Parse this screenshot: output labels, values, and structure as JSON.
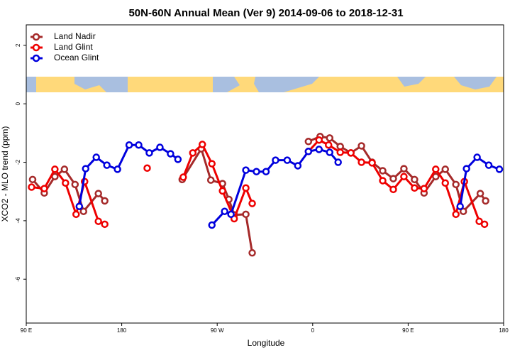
{
  "chart_data": {
    "type": "line",
    "title": "50N-60N Annual Mean (Ver 9)   2014-09-06 to 2018-12-31",
    "xlabel": "Longitude",
    "ylabel": "XCO2 - MLO trend (ppm)",
    "xlim": [
      90,
      540
    ],
    "xticks": [
      {
        "value": 90,
        "label": "90 E"
      },
      180,
      {
        "value": 270,
        "label": "90 W"
      },
      {
        "value": 360,
        "label": "0"
      },
      {
        "value": 450,
        "label": "90 E"
      },
      {
        "value": 540,
        "label": "180"
      }
    ],
    "ylim": [
      -7.5,
      2.7
    ],
    "yticks": [
      -6,
      -4,
      -2,
      0,
      2
    ],
    "legend": "top-left",
    "series": [
      {
        "name": "Land Nadir",
        "color": "#a52a2a",
        "x": [
          96,
          107,
          117,
          126,
          136,
          144,
          158,
          164,
          null,
          237,
          255,
          264,
          275,
          281,
          286,
          297,
          303,
          null,
          356,
          367,
          376,
          386,
          396,
          406,
          416,
          426,
          436,
          446,
          456,
          465,
          476,
          485,
          495,
          502,
          518,
          523
        ],
        "values": [
          -2.59,
          -3.05,
          -2.49,
          -2.24,
          -2.76,
          -3.68,
          -3.07,
          -3.32,
          null,
          -2.59,
          -1.54,
          -2.61,
          -2.73,
          -3.27,
          -3.8,
          -3.78,
          -5.1,
          null,
          -1.29,
          -1.12,
          -1.17,
          -1.46,
          -1.68,
          -1.44,
          -2.0,
          -2.29,
          -2.56,
          -2.22,
          -2.59,
          -3.05,
          -2.49,
          -2.24,
          -2.76,
          -3.68,
          -3.07,
          -3.32
        ]
      },
      {
        "name": "Land Glint",
        "color": "#ee0000",
        "x": [
          95,
          107,
          117,
          127,
          137,
          145,
          158,
          164,
          null,
          204,
          null,
          238,
          247,
          256,
          265,
          275,
          286,
          297,
          303,
          null,
          356,
          366,
          375,
          386,
          396,
          406,
          416,
          426,
          436,
          446,
          456,
          465,
          476,
          485,
          495,
          503,
          517,
          522
        ],
        "values": [
          -2.85,
          -2.9,
          -2.24,
          -2.71,
          -3.78,
          -2.66,
          -4.02,
          -4.12,
          null,
          -2.2,
          null,
          -2.51,
          -1.68,
          -1.39,
          -2.05,
          -2.98,
          -3.93,
          -2.88,
          -3.41,
          null,
          -1.63,
          -1.24,
          -1.41,
          -1.66,
          -1.68,
          -2.0,
          -2.02,
          -2.63,
          -2.93,
          -2.49,
          -2.88,
          -2.9,
          -2.24,
          -2.71,
          -3.78,
          -2.66,
          -4.02,
          -4.12
        ]
      },
      {
        "name": "Ocean Glint",
        "color": "#0000dd",
        "x": [
          140,
          146,
          156,
          166,
          176,
          187,
          196,
          206,
          216,
          226,
          233,
          null,
          265,
          277,
          283,
          297,
          307,
          316,
          325,
          336,
          346,
          356,
          366,
          376,
          384,
          null,
          499,
          505,
          515,
          526,
          536
        ],
        "values": [
          -3.51,
          -2.22,
          -1.83,
          -2.1,
          -2.24,
          -1.41,
          -1.41,
          -1.68,
          -1.49,
          -1.71,
          -1.9,
          null,
          -4.15,
          -3.68,
          -3.78,
          -2.27,
          -2.32,
          -2.32,
          -1.93,
          -1.93,
          -2.12,
          -1.63,
          -1.56,
          -1.66,
          -2.0,
          null,
          -3.51,
          -2.22,
          -1.83,
          -2.1,
          -2.24
        ]
      }
    ]
  }
}
